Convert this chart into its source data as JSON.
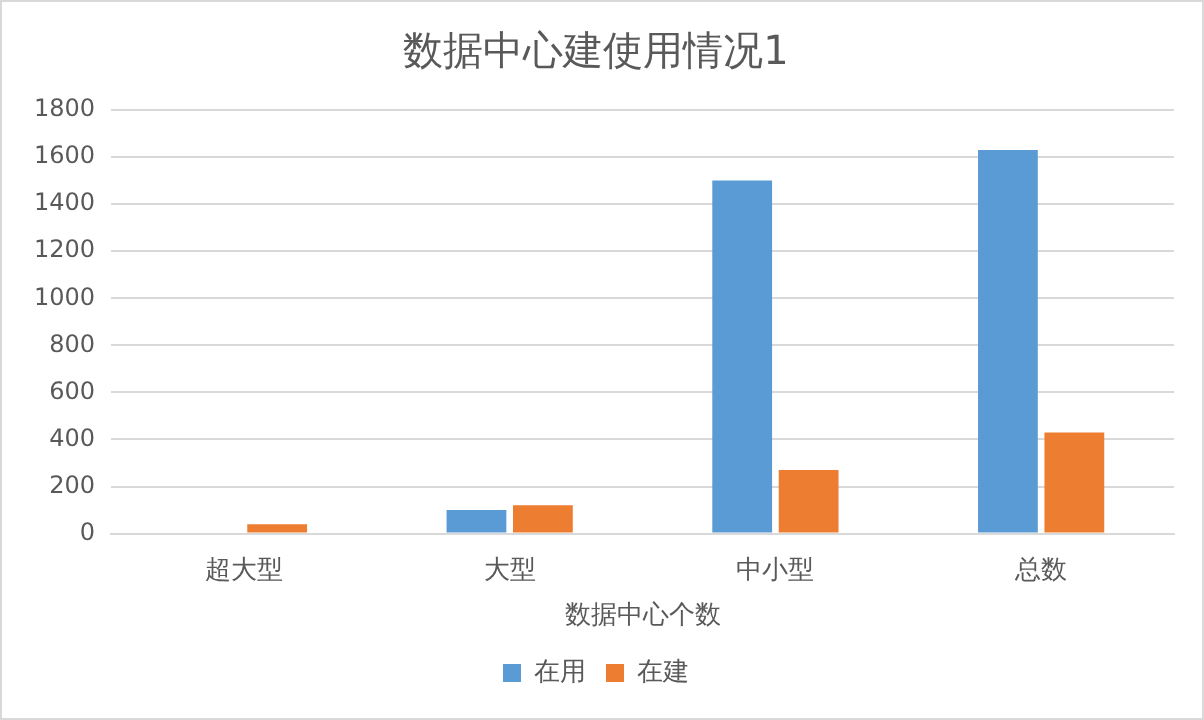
{
  "chart_data": {
    "type": "bar",
    "title": "数据中心建使用情况1",
    "xlabel": "数据中心个数",
    "categories": [
      "超大型",
      "大型",
      "中小型",
      "总数"
    ],
    "series": [
      {
        "name": "在用",
        "color": "#5b9bd5",
        "values": [
          0,
          100,
          1500,
          1630
        ]
      },
      {
        "name": "在建",
        "color": "#ed7d31",
        "values": [
          40,
          120,
          270,
          430
        ]
      }
    ],
    "ylim": [
      0,
      1800
    ],
    "yticks": [
      0,
      200,
      400,
      600,
      800,
      1000,
      1200,
      1400,
      1600,
      1800
    ],
    "grid": "y",
    "legend": "bottom"
  }
}
